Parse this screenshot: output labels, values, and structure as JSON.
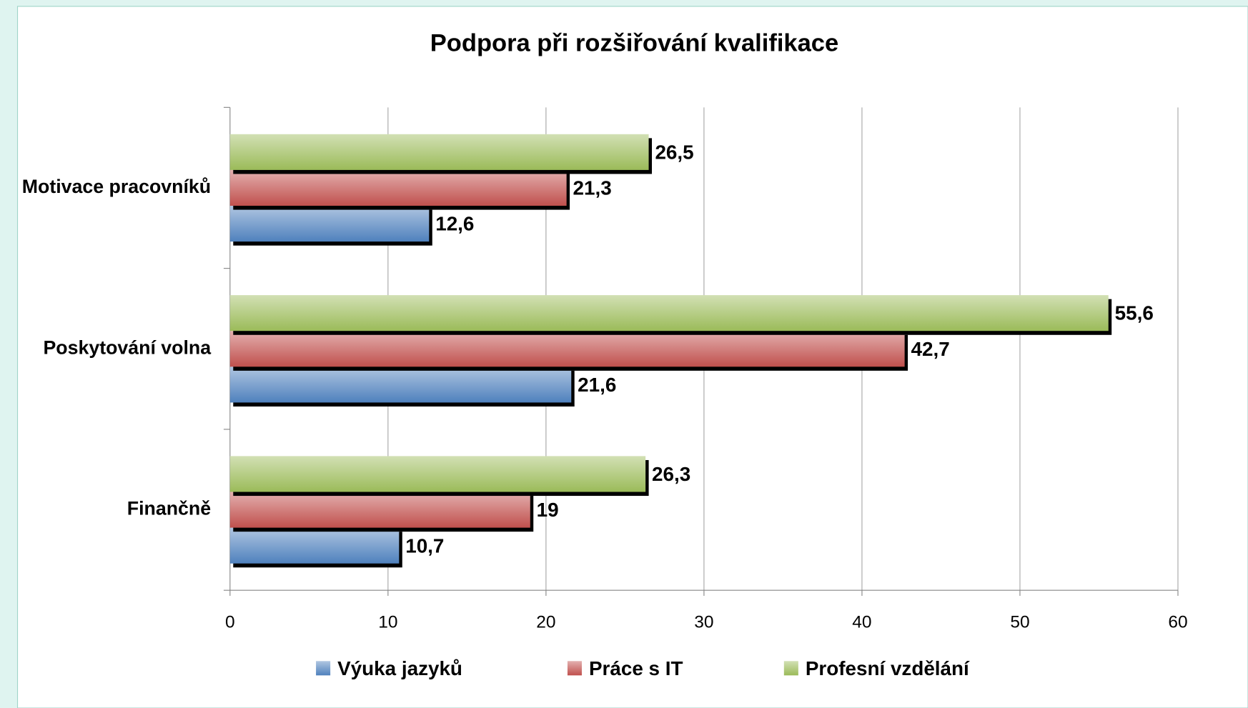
{
  "chart_data": {
    "type": "bar",
    "orientation": "horizontal",
    "title": "Podpora při rozšiřování kvalifikace",
    "categories": [
      "Finančně",
      "Poskytování volna",
      "Motivace pracovníků"
    ],
    "series": [
      {
        "name": "Výuka jazyků",
        "color": "#4f81bd",
        "values": [
          10.7,
          21.6,
          12.6
        ],
        "value_labels": [
          "10,7",
          "21,6",
          "12,6"
        ]
      },
      {
        "name": "Práce s IT",
        "color": "#c0504d",
        "values": [
          19,
          42.7,
          21.3
        ],
        "value_labels": [
          "19",
          "42,7",
          "21,3"
        ]
      },
      {
        "name": "Profesní vzdělání",
        "color": "#9bbb59",
        "values": [
          26.3,
          55.6,
          26.5
        ],
        "value_labels": [
          "26,3",
          "55,6",
          "26,5"
        ]
      }
    ],
    "xlim": [
      0,
      60
    ],
    "xticks": [
      0,
      10,
      20,
      30,
      40,
      50,
      60
    ],
    "grid": true,
    "legend": "bottom"
  }
}
